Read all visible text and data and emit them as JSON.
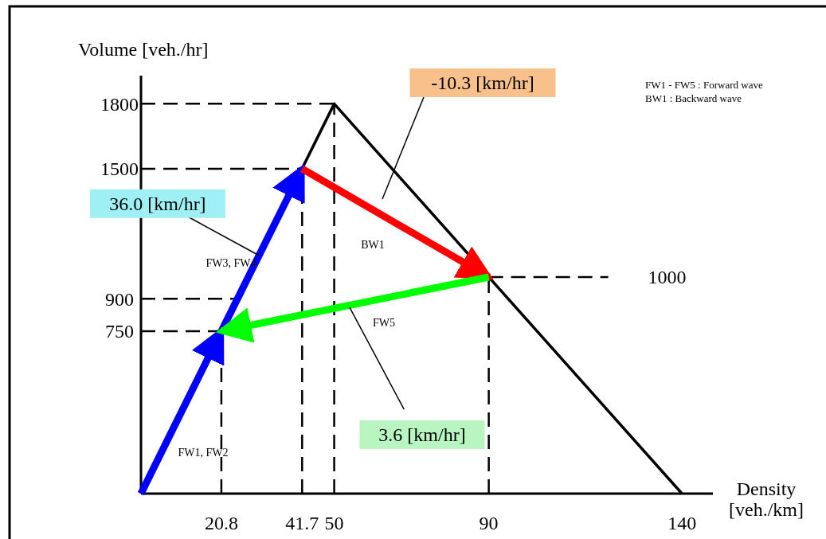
{
  "chart_data": {
    "type": "line",
    "xlabel": "Density [veh./km]",
    "ylabel": "Volume [veh./hr]",
    "xlim": [
      0,
      148
    ],
    "ylim": [
      0,
      1930
    ],
    "xticks": [
      20.8,
      41.7,
      50,
      90,
      140
    ],
    "yticks": [
      750,
      900,
      1500,
      1800
    ],
    "series": [
      {
        "color": "#000000",
        "x": [
          0,
          50,
          140
        ],
        "values": [
          0,
          1800,
          0
        ]
      },
      {
        "color": "#0000ff",
        "x": [
          0,
          20.8
        ],
        "values": [
          0,
          750
        ]
      },
      {
        "color": "#0000ff",
        "x": [
          20.8,
          41.7
        ],
        "values": [
          750,
          1500
        ]
      },
      {
        "color": "#ff0000",
        "x": [
          41.7,
          90
        ],
        "values": [
          1500,
          1000
        ]
      },
      {
        "color": "#00ff00",
        "x": [
          90,
          20.8
        ],
        "values": [
          1000,
          750
        ]
      }
    ],
    "ref_lines": [
      {
        "axis": "x",
        "value": 20.8,
        "line_style": "dashed"
      },
      {
        "axis": "x",
        "value": 41.7,
        "line_style": "dashed"
      },
      {
        "axis": "x",
        "value": 50,
        "line_style": "dashed"
      },
      {
        "axis": "x",
        "value": 90,
        "line_style": "dashed"
      },
      {
        "axis": "y",
        "value": 750,
        "line_style": "dashed"
      },
      {
        "axis": "y",
        "value": 900,
        "line_style": "dashed"
      },
      {
        "axis": "y",
        "value": 1500,
        "line_style": "dashed"
      },
      {
        "axis": "y",
        "value": 1800,
        "line_style": "dashed"
      },
      {
        "axis": "y",
        "value": 1000,
        "label": "1000",
        "line_style": "dashed"
      }
    ],
    "annotations": [
      "-10.3 [km/hr]",
      {
        "text": "36.0 [km/hr]",
        "x": 30.5,
        "y": 1100
      },
      {
        "text": "3.6 [km/hr]",
        "x": 54,
        "y": 860
      },
      "BW1",
      "FW5",
      "FW3, FW4",
      "FW1, FW2",
      "FW1 - FW5 : Forward wave",
      "BW1 : Backward wave"
    ],
    "grid": false
  }
}
